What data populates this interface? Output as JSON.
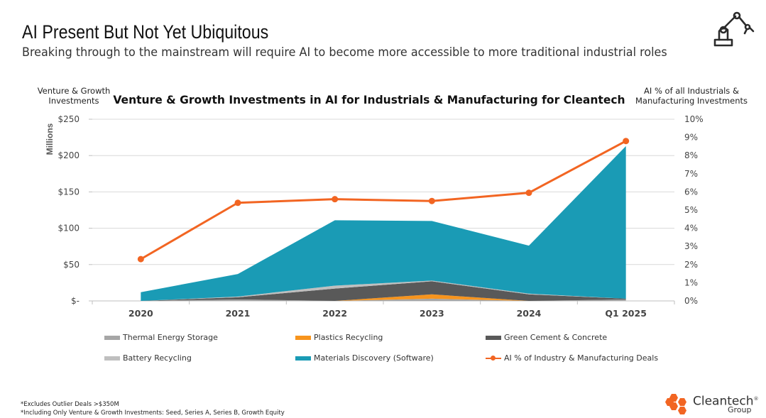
{
  "header": {
    "title": "AI Present But Not Yet Ubiquitous",
    "subtitle": "Breaking through to the mainstream will require AI to become more accessible to more traditional industrial roles"
  },
  "left_axis_title": "Venture & Growth Investments",
  "right_axis_title": "AI % of all Industrials & Manufacturing Investments",
  "colors": {
    "thermal": "#a6a6a6",
    "plastics": "#f7941d",
    "cement": "#595959",
    "battery": "#bfbfbf",
    "materials": "#1a9bb5",
    "ai_line": "#f26522"
  },
  "chart_data": {
    "type": "area",
    "title": "Venture & Growth Investments in AI for Industrials & Manufacturing for Cleantech",
    "ylabel": "Millions",
    "categories": [
      "2020",
      "2021",
      "2022",
      "2023",
      "2024",
      "Q1 2025"
    ],
    "ylim": [
      0,
      250
    ],
    "y_ticks": [
      "$-",
      "$50",
      "$100",
      "$150",
      "$200",
      "$250"
    ],
    "y2lim": [
      0,
      10
    ],
    "y2_ticks": [
      "0%",
      "1%",
      "2%",
      "3%",
      "4%",
      "5%",
      "6%",
      "7%",
      "8%",
      "9%",
      "10%"
    ],
    "stacked": true,
    "series": [
      {
        "name": "Thermal Energy Storage",
        "values": [
          0,
          2,
          0,
          3,
          0,
          2
        ]
      },
      {
        "name": "Plastics Recycling",
        "values": [
          0,
          0,
          0,
          6,
          0,
          0
        ]
      },
      {
        "name": "Green Cement & Concrete",
        "values": [
          0,
          3,
          17,
          18,
          9,
          1
        ]
      },
      {
        "name": "Battery Recycling",
        "values": [
          0,
          1,
          4,
          1,
          1,
          0
        ]
      },
      {
        "name": "Materials Discovery (Software)",
        "values": [
          12,
          31,
          90,
          82,
          66,
          210
        ]
      }
    ],
    "line_series": {
      "name": "AI % of Industry & Manufacturing Deals",
      "axis": "right",
      "values": [
        2.3,
        5.4,
        5.6,
        5.5,
        5.95,
        8.8
      ]
    },
    "grid": true,
    "legend_position": "bottom"
  },
  "footnotes": [
    "*Excludes Outlier Deals >$350M",
    "*Including Only Venture & Growth Investments: Seed, Series A, Series B, Growth Equity"
  ],
  "logo": {
    "name": "Cleantech",
    "sub": "Group",
    "mark": "®"
  }
}
